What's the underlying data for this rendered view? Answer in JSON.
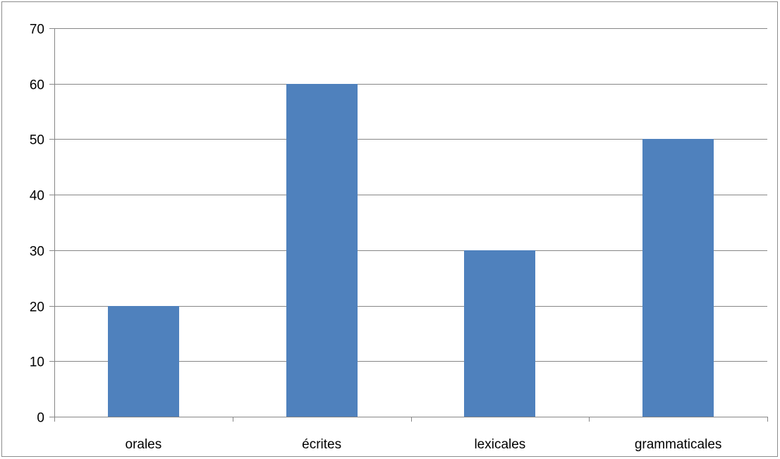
{
  "chart_data": {
    "type": "bar",
    "categories": [
      "orales",
      "écrites",
      "lexicales",
      "grammaticales"
    ],
    "values": [
      20,
      60,
      30,
      50
    ],
    "title": "",
    "xlabel": "",
    "ylabel": "",
    "ylim": [
      0,
      70
    ],
    "yticks": [
      0,
      10,
      20,
      30,
      40,
      50,
      60,
      70
    ],
    "grid": true,
    "legend": "none",
    "colors": {
      "bar": "#4f81bd",
      "grid": "#868686",
      "axis": "#868686",
      "text": "#000000"
    }
  }
}
